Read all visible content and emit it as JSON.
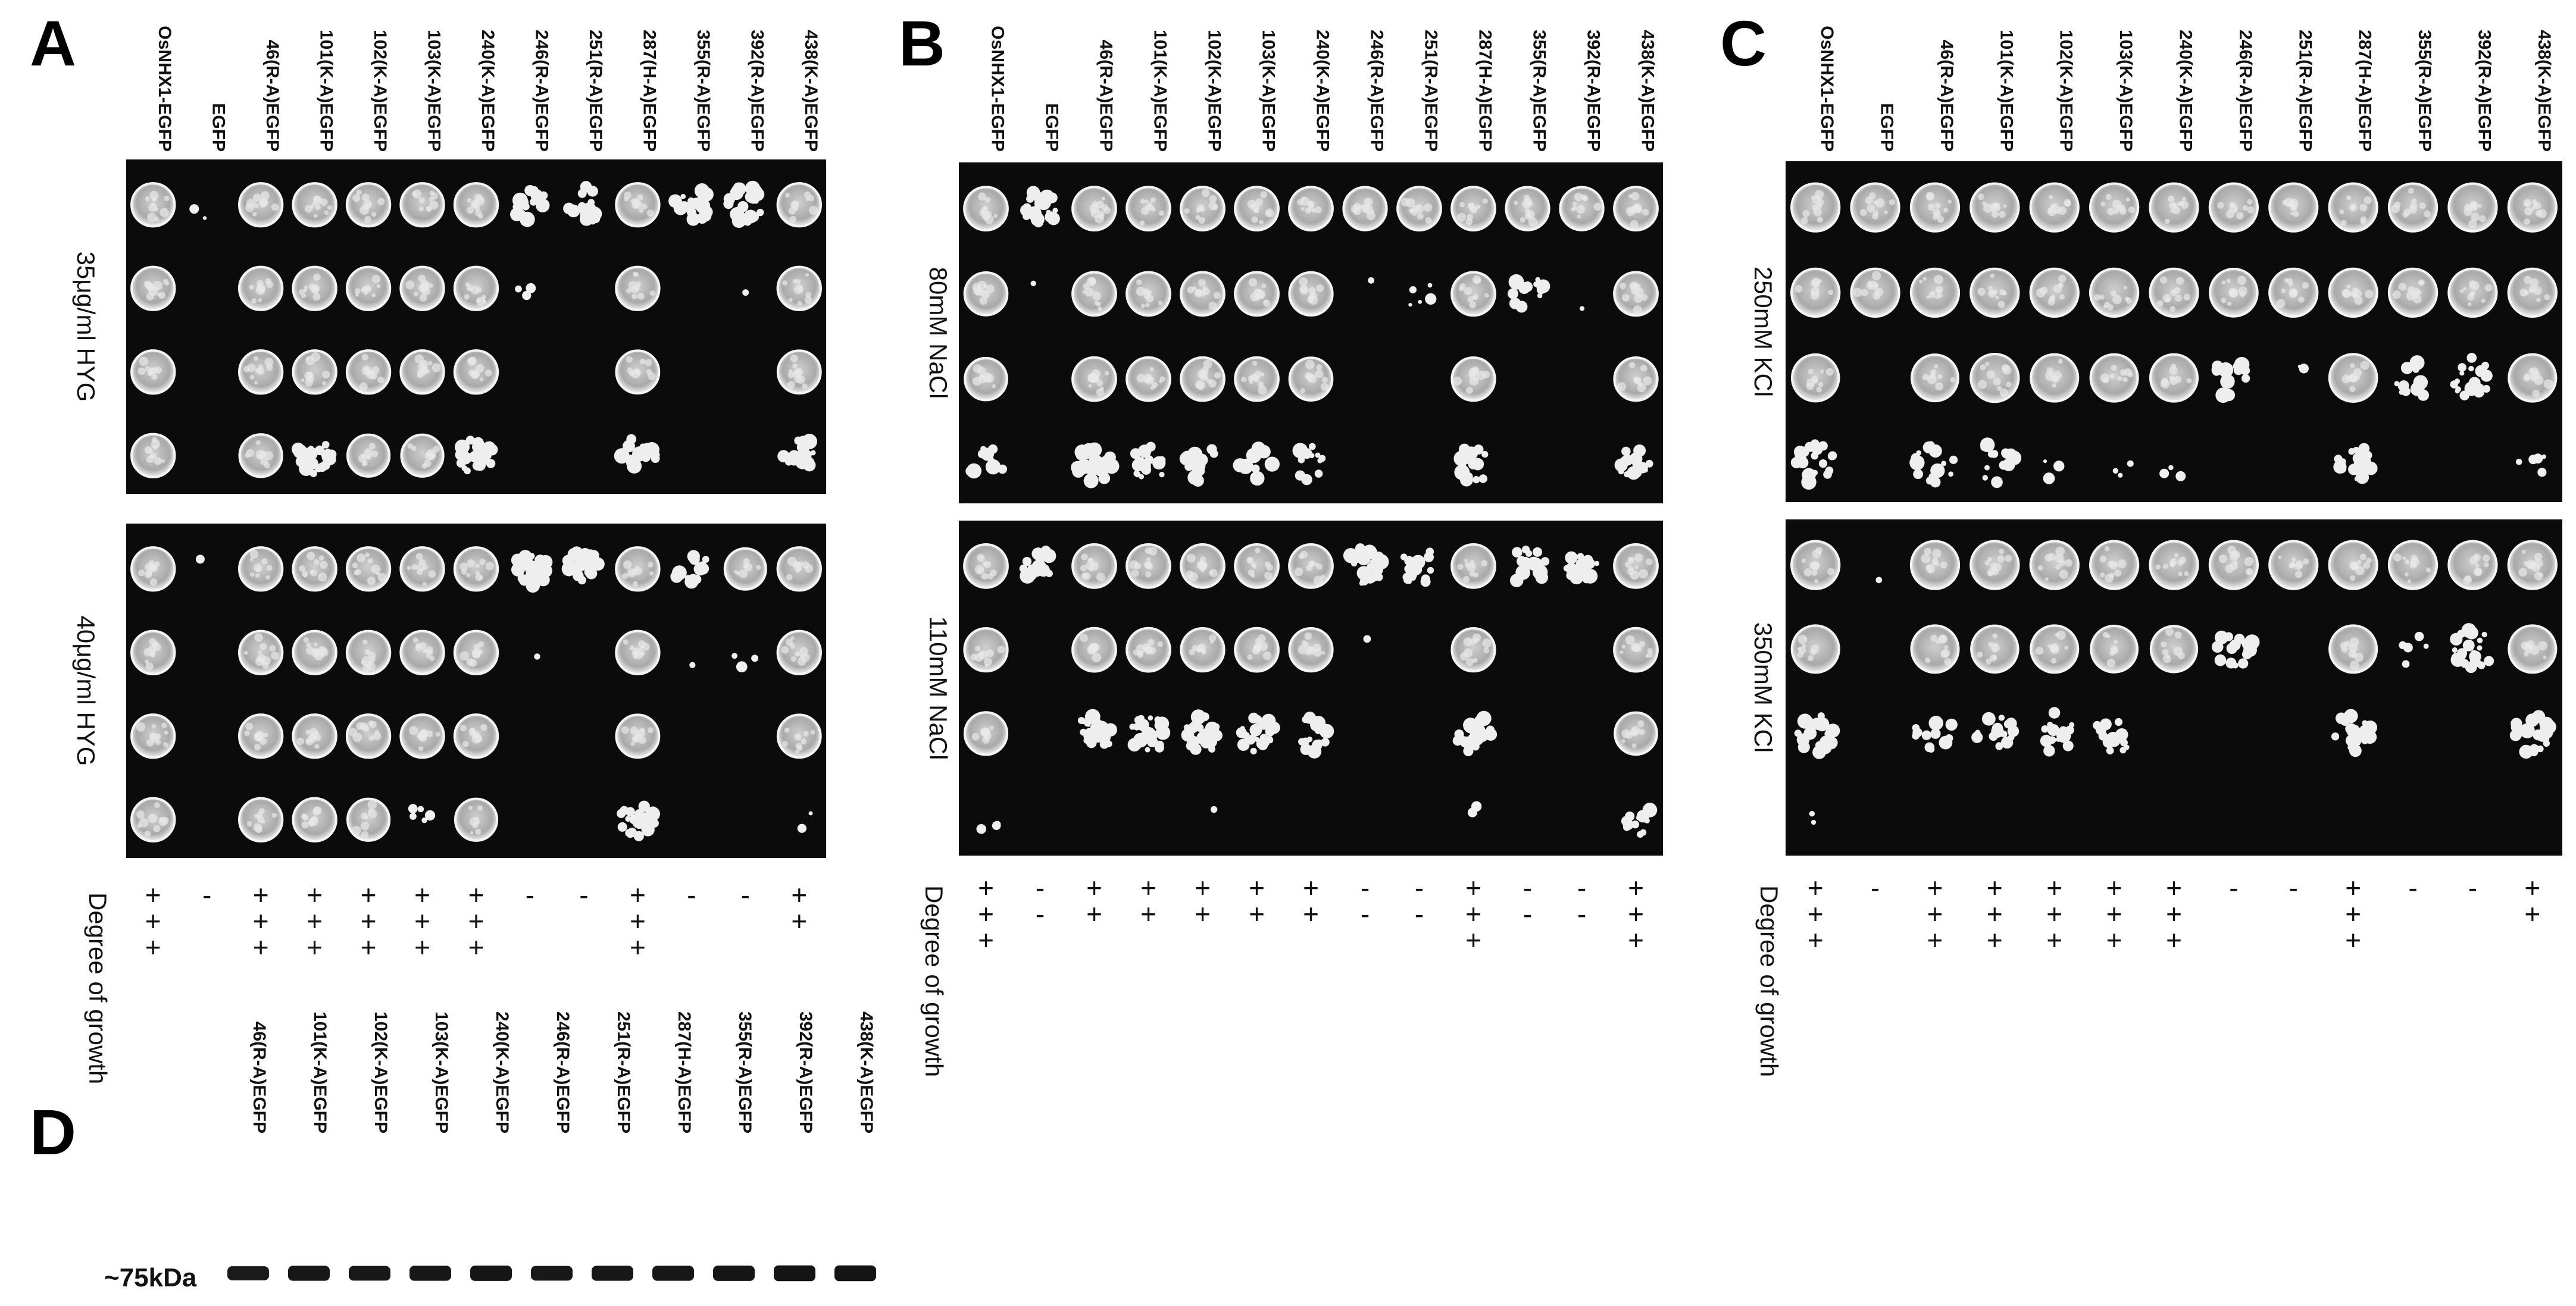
{
  "panels": [
    {
      "letter": "A",
      "strains": [
        "OsNHX1-EGFP",
        "EGFP",
        "46(R-A)EGFP",
        "101(K-A)EGFP",
        "102(K-A)EGFP",
        "103(K-A)EGFP",
        "240(K-A)EGFP",
        "246(R-A)EGFP",
        "251(R-A)EGFP",
        "287(H-A)EGFP",
        "355(R-A)EGFP",
        "392(R-A)EGFP",
        "438(K-A)EGFP"
      ],
      "conditions": [
        "35μg/ml HYG",
        "40μg/ml HYG"
      ],
      "growth_title": "Degree of growth",
      "growth": [
        "+++",
        "-",
        "+++",
        "+++",
        "+++",
        "+++",
        "+++",
        "-",
        "-",
        "+++",
        "-",
        "-",
        "++"
      ]
    },
    {
      "letter": "B",
      "strains": [
        "OsNHX1-EGFP",
        "EGFP",
        "46(R-A)EGFP",
        "101(K-A)EGFP",
        "102(K-A)EGFP",
        "103(K-A)EGFP",
        "240(K-A)EGFP",
        "246(R-A)EGFP",
        "251(R-A)EGFP",
        "287(H-A)EGFP",
        "355(R-A)EGFP",
        "392(R-A)EGFP",
        "438(K-A)EGFP"
      ],
      "conditions": [
        "80mM NaCl",
        "110mM NaCl"
      ],
      "growth_title": "Degree of growth",
      "growth": [
        "+++",
        "--",
        "++",
        "++",
        "++",
        "++",
        "++",
        "--",
        "--",
        "+++",
        "--",
        "--",
        "+++"
      ]
    },
    {
      "letter": "C",
      "strains": [
        "OsNHX1-EGFP",
        "EGFP",
        "46(R-A)EGFP",
        "101(K-A)EGFP",
        "102(K-A)EGFP",
        "103(K-A)EGFP",
        "240(K-A)EGFP",
        "246(R-A)EGFP",
        "251(R-A)EGFP",
        "287(H-A)EGFP",
        "355(R-A)EGFP",
        "392(R-A)EGFP",
        "438(K-A)EGFP"
      ],
      "conditions": [
        "250mM KCl",
        "350mM KCl"
      ],
      "growth_title": "Degree of growth",
      "growth": [
        "+++",
        "-",
        "+++",
        "+++",
        "+++",
        "+++",
        "+++",
        "-",
        "-",
        "+++",
        "-",
        "-",
        "++"
      ]
    }
  ],
  "panel_d": {
    "letter": "D",
    "strains": [
      "46(R-A)EGFP",
      "101(K-A)EGFP",
      "102(K-A)EGFP",
      "103(K-A)EGFP",
      "240(K-A)EGFP",
      "246(R-A)EGFP",
      "251(R-A)EGFP",
      "287(H-A)EGFP",
      "355(R-A)EGFP",
      "392(R-A)EGFP",
      "438(K-A)EGFP"
    ],
    "band_label": "~75kDa"
  },
  "spots": {
    "A": [
      [
        [
          1,
          1,
          1,
          1
        ],
        [
          0.12,
          0,
          0,
          0
        ],
        [
          1,
          1,
          1,
          0.9
        ],
        [
          1,
          1,
          1,
          0.6
        ],
        [
          1,
          1,
          1,
          0.8
        ],
        [
          1,
          1,
          1,
          0.8
        ],
        [
          1,
          1,
          1,
          0.6
        ],
        [
          0.5,
          0.18,
          0,
          0
        ],
        [
          0.45,
          0,
          0,
          0
        ],
        [
          1,
          1,
          0.95,
          0.35
        ],
        [
          0.5,
          0,
          0,
          0
        ],
        [
          0.65,
          0.08,
          0,
          0
        ],
        [
          1,
          1,
          0.95,
          0.55
        ]
      ],
      [
        [
          1,
          1,
          1,
          1
        ],
        [
          0.08,
          0,
          0,
          0
        ],
        [
          1,
          1,
          1,
          1
        ],
        [
          1,
          1,
          1,
          1
        ],
        [
          1,
          1,
          1,
          0.8
        ],
        [
          1,
          1,
          1,
          0.25
        ],
        [
          1,
          1,
          1,
          0.8
        ],
        [
          0.65,
          0.06,
          0,
          0
        ],
        [
          0.55,
          0,
          0,
          0
        ],
        [
          1,
          1,
          0.95,
          0.55
        ],
        [
          0.35,
          0.08,
          0,
          0
        ],
        [
          0.7,
          0.18,
          0,
          0
        ],
        [
          1,
          1,
          0.95,
          0.1
        ]
      ]
    ],
    "B": [
      [
        [
          1,
          0.9,
          0.8,
          0.35
        ],
        [
          0.6,
          0.06,
          0,
          0
        ],
        [
          1,
          1,
          1,
          0.6
        ],
        [
          1,
          1,
          1,
          0.35
        ],
        [
          1,
          1,
          1,
          0.35
        ],
        [
          1,
          1,
          1,
          0.3
        ],
        [
          1,
          0.95,
          0.9,
          0.3
        ],
        [
          0.95,
          0.06,
          0,
          0
        ],
        [
          1,
          0.25,
          0,
          0
        ],
        [
          1,
          1,
          0.95,
          0.5
        ],
        [
          0.95,
          0.3,
          0,
          0
        ],
        [
          0.95,
          0.06,
          0,
          0
        ],
        [
          1,
          1,
          0.95,
          0.4
        ]
      ],
      [
        [
          1,
          0.95,
          0.85,
          0.15
        ],
        [
          0.4,
          0,
          0,
          0
        ],
        [
          1,
          1,
          0.6,
          0
        ],
        [
          1,
          1,
          0.55,
          0
        ],
        [
          1,
          0.95,
          0.55,
          0.06
        ],
        [
          1,
          1,
          0.6,
          0
        ],
        [
          1,
          0.95,
          0.45,
          0
        ],
        [
          0.6,
          0.05,
          0,
          0
        ],
        [
          0.5,
          0,
          0,
          0
        ],
        [
          1,
          0.95,
          0.55,
          0.15
        ],
        [
          0.5,
          0,
          0,
          0
        ],
        [
          0.4,
          0,
          0,
          0
        ],
        [
          1,
          1,
          0.8,
          0.3
        ]
      ]
    ],
    "C": [
      [
        [
          1,
          1,
          0.85,
          0.55
        ],
        [
          1,
          1,
          0,
          0
        ],
        [
          1,
          1,
          0.8,
          0.35
        ],
        [
          1,
          1,
          1,
          0.35
        ],
        [
          1,
          1,
          0.9,
          0.15
        ],
        [
          1,
          1,
          0.9,
          0.15
        ],
        [
          1,
          1,
          0.9,
          0.15
        ],
        [
          1,
          0.95,
          0.35,
          0
        ],
        [
          1,
          1,
          0.1,
          0
        ],
        [
          1,
          1,
          0.95,
          0.45
        ],
        [
          1,
          1,
          0.3,
          0
        ],
        [
          1,
          1,
          0.45,
          0
        ],
        [
          1,
          1,
          0.9,
          0.25
        ]
      ],
      [
        [
          1,
          0.9,
          0.6,
          0.1
        ],
        [
          0.05,
          0,
          0,
          0
        ],
        [
          1,
          0.9,
          0.3,
          0
        ],
        [
          1,
          0.85,
          0.45,
          0
        ],
        [
          1,
          0.9,
          0.35,
          0
        ],
        [
          1,
          0.8,
          0.4,
          0
        ],
        [
          1,
          0.75,
          0,
          0
        ],
        [
          1,
          0.35,
          0,
          0
        ],
        [
          1,
          0,
          0,
          0
        ],
        [
          1,
          0.9,
          0.55,
          0
        ],
        [
          1,
          0.25,
          0,
          0
        ],
        [
          1,
          0.5,
          0,
          0
        ],
        [
          1,
          0.9,
          0.5,
          0
        ]
      ]
    ]
  },
  "band_strength": [
    0.85,
    0.9,
    0.88,
    0.9,
    0.92,
    0.88,
    0.9,
    0.9,
    0.92,
    0.95,
    0.95
  ]
}
